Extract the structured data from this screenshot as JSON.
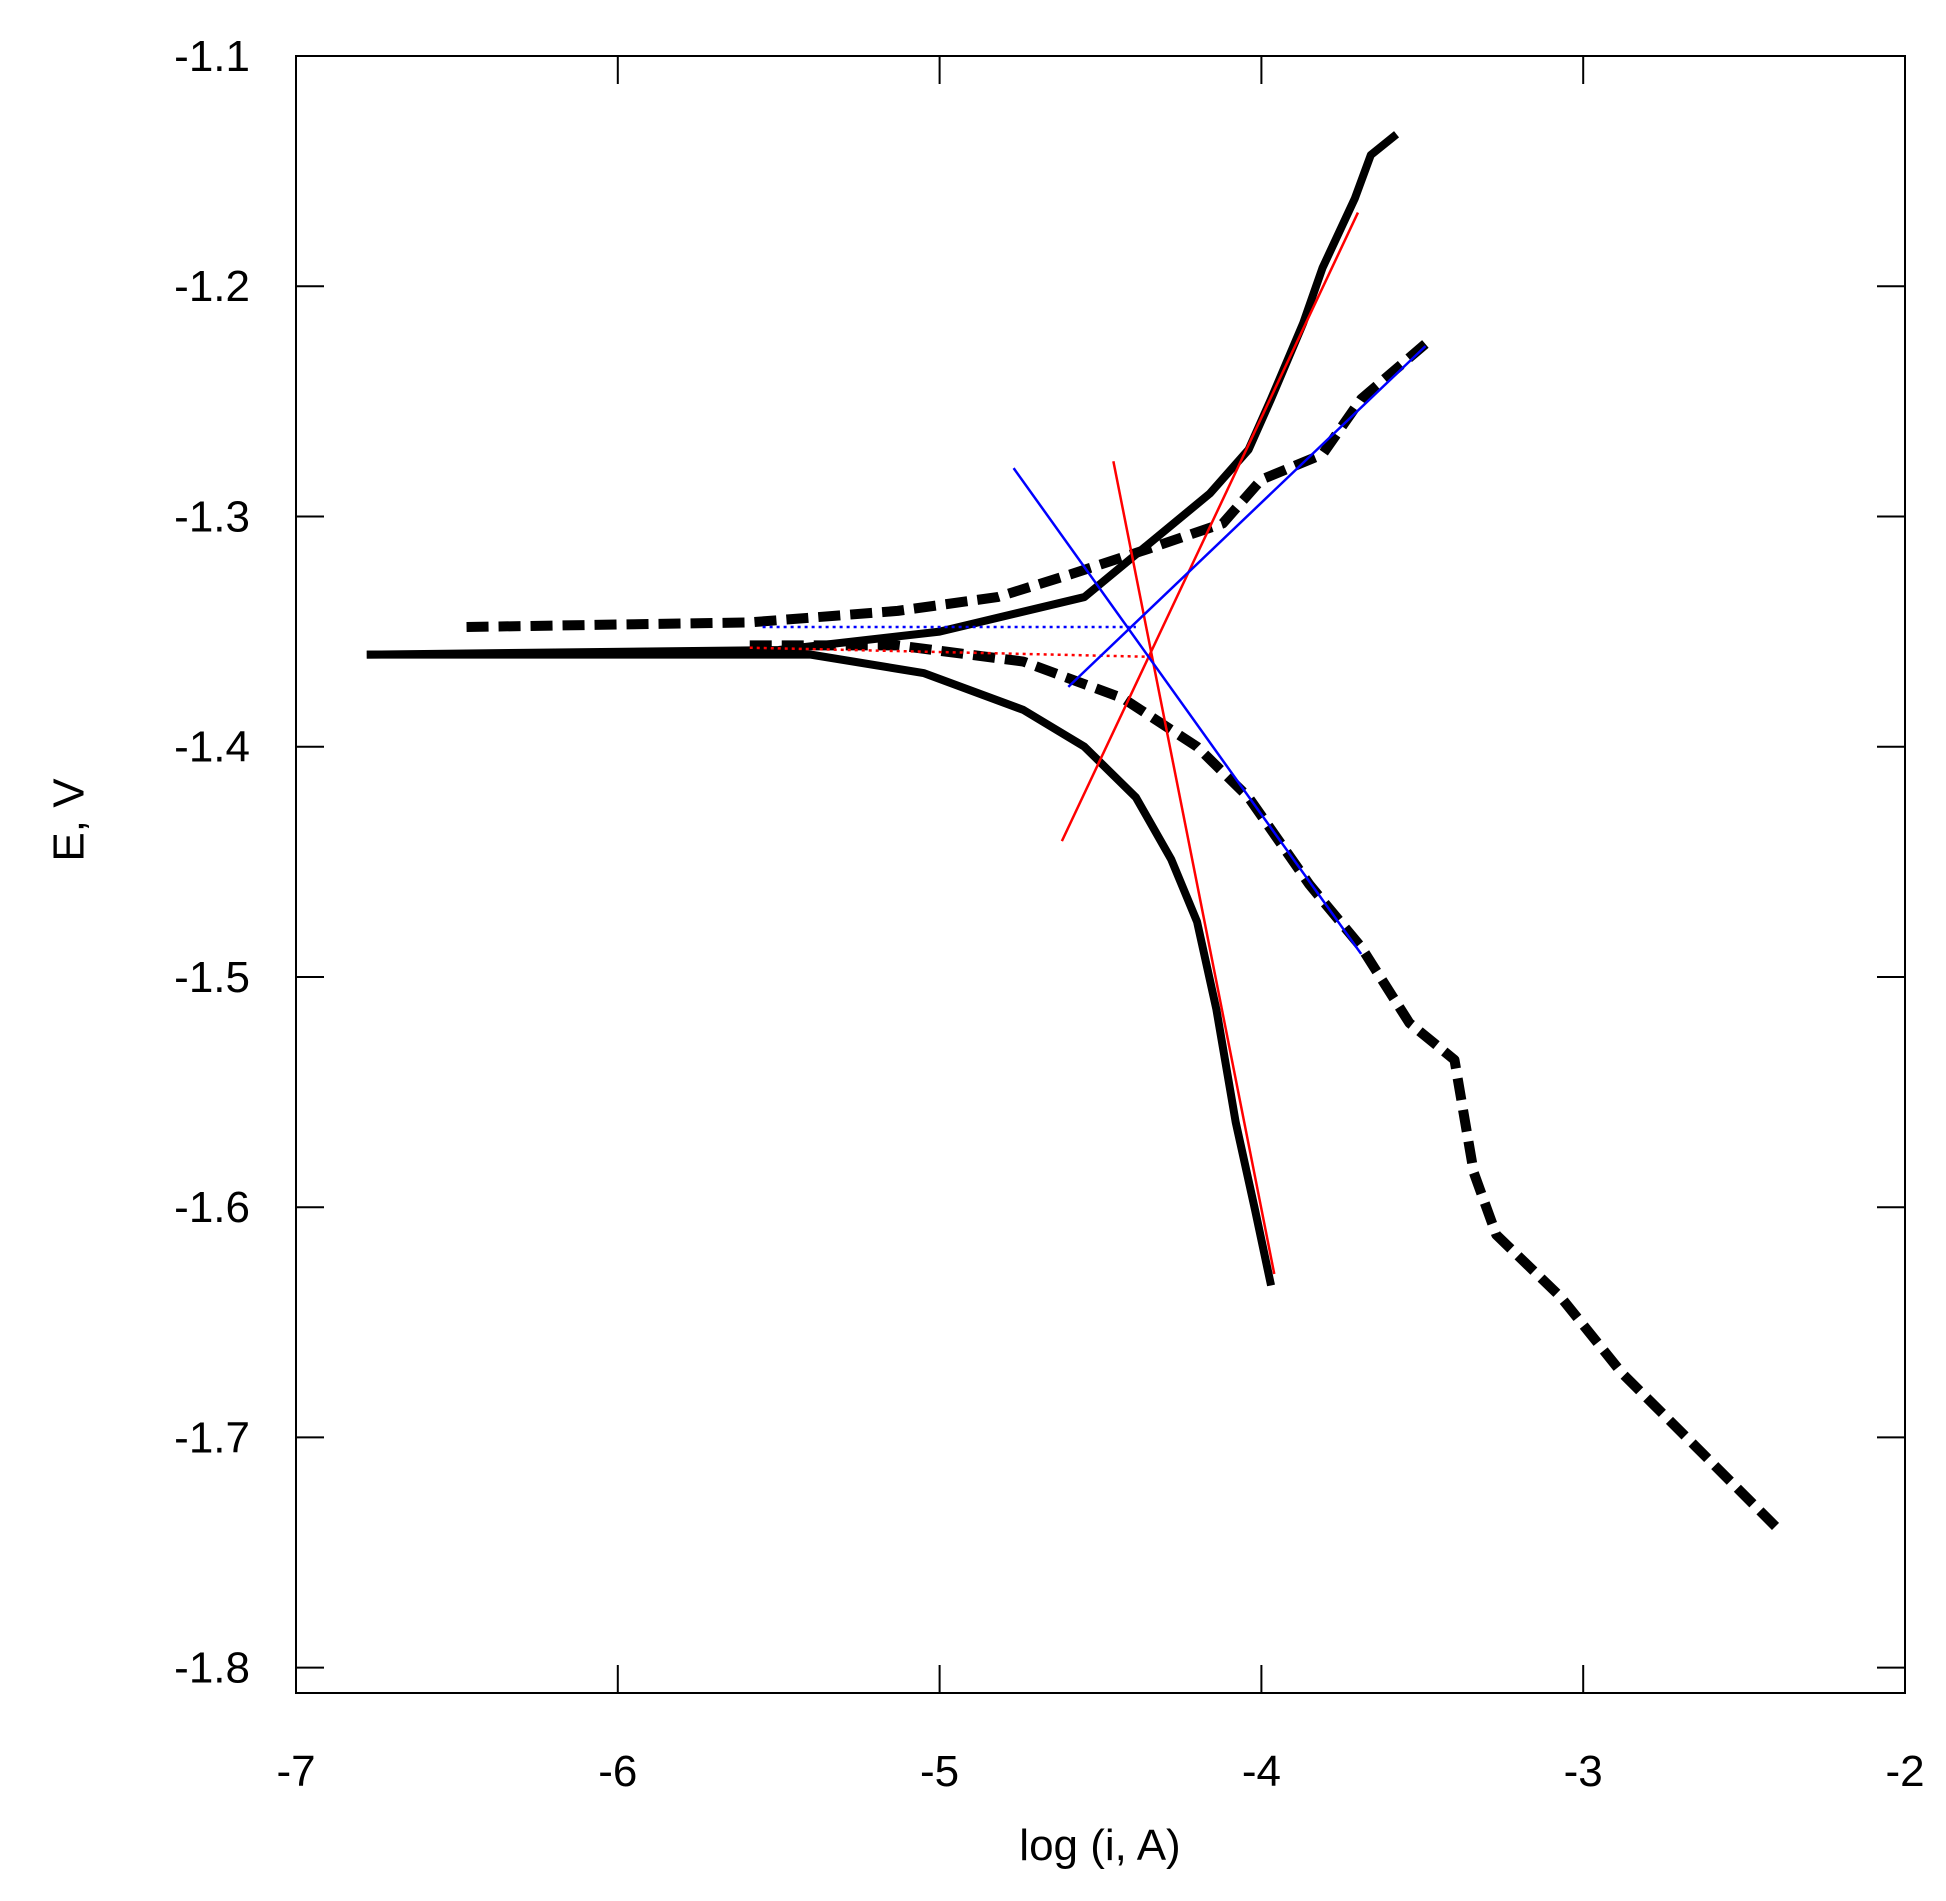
{
  "chart_data": {
    "type": "line",
    "x_label": "log (i, A)",
    "y_label": "E, V",
    "xlim": [
      -7,
      -2
    ],
    "ylim": [
      -1.811,
      -1.1
    ],
    "xticks": [
      -7,
      -6,
      -5,
      -4,
      -3,
      -2
    ],
    "yticks": [
      -1.1,
      -1.2,
      -1.3,
      -1.4,
      -1.5,
      -1.6,
      -1.7,
      -1.8
    ],
    "grid": false,
    "series": [
      {
        "color": "#000000",
        "dash": "solid",
        "width": 8,
        "x": [
          -6.78,
          -5.5,
          -5.0,
          -4.55,
          -4.16,
          -4.04,
          -3.97,
          -3.87,
          -3.81,
          -3.71,
          -3.66,
          -3.58
        ],
        "values": [
          -1.36,
          -1.358,
          -1.35,
          -1.335,
          -1.29,
          -1.271,
          -1.249,
          -1.216,
          -1.192,
          -1.162,
          -1.143,
          -1.134
        ]
      },
      {
        "color": "#000000",
        "dash": "solid",
        "width": 8,
        "x": [
          -6.78,
          -5.4,
          -5.05,
          -4.74,
          -4.55,
          -4.39,
          -4.28,
          -4.2,
          -4.14,
          -4.08,
          -4.02,
          -3.97
        ],
        "values": [
          -1.36,
          -1.36,
          -1.368,
          -1.384,
          -1.4,
          -1.422,
          -1.449,
          -1.476,
          -1.514,
          -1.563,
          -1.601,
          -1.634
        ]
      },
      {
        "color": "#000000",
        "dash": "dashed",
        "width": 10,
        "x": [
          -6.47,
          -5.59,
          -5.13,
          -4.82,
          -4.59,
          -4.35,
          -4.12,
          -4.0,
          -3.81,
          -3.69,
          -3.49
        ],
        "values": [
          -1.348,
          -1.346,
          -1.341,
          -1.335,
          -1.325,
          -1.314,
          -1.303,
          -1.284,
          -1.273,
          -1.249,
          -1.225
        ]
      },
      {
        "color": "#000000",
        "dash": "dashed",
        "width": 10,
        "x": [
          -5.59,
          -5.13,
          -4.74,
          -4.43,
          -4.2,
          -4.04,
          -3.85,
          -3.69,
          -3.54,
          -3.4,
          -3.34,
          -3.27,
          -3.07,
          -2.88,
          -2.65,
          -2.4
        ],
        "values": [
          -1.356,
          -1.356,
          -1.363,
          -1.379,
          -1.4,
          -1.422,
          -1.46,
          -1.487,
          -1.52,
          -1.536,
          -1.585,
          -1.612,
          -1.639,
          -1.672,
          -1.704,
          -1.739
        ]
      },
      {
        "color": "#ff0000",
        "dash": "solid",
        "width": 2.5,
        "x": [
          -4.62,
          -3.7
        ],
        "values": [
          -1.441,
          -1.168
        ]
      },
      {
        "color": "#ff0000",
        "dash": "solid",
        "width": 2.5,
        "x": [
          -4.46,
          -3.96
        ],
        "values": [
          -1.276,
          -1.629
        ]
      },
      {
        "color": "#ff0000",
        "dash": "dotted",
        "width": 2.5,
        "x": [
          -5.59,
          -4.33
        ],
        "values": [
          -1.357,
          -1.361
        ]
      },
      {
        "color": "#0000ff",
        "dash": "solid",
        "width": 2.5,
        "x": [
          -4.77,
          -3.69
        ],
        "values": [
          -1.279,
          -1.49
        ]
      },
      {
        "color": "#0000ff",
        "dash": "solid",
        "width": 2.5,
        "x": [
          -4.6,
          -3.49
        ],
        "values": [
          -1.374,
          -1.226
        ]
      },
      {
        "color": "#0000ff",
        "dash": "dotted",
        "width": 2.5,
        "x": [
          -5.55,
          -4.39
        ],
        "values": [
          -1.348,
          -1.348
        ]
      }
    ]
  }
}
